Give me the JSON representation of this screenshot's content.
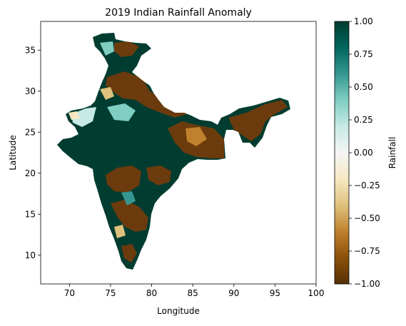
{
  "chart_data": {
    "type": "heatmap",
    "title": "2019 Indian Rainfall Anomaly",
    "xlabel": "Longitude",
    "ylabel": "Latitude",
    "xlim": [
      66.5,
      100
    ],
    "ylim": [
      6.5,
      38.5
    ],
    "x_ticks": [
      "70",
      "75",
      "80",
      "85",
      "90",
      "95",
      "100"
    ],
    "y_ticks": [
      "10",
      "15",
      "20",
      "25",
      "30",
      "35"
    ],
    "colorbar": {
      "label": "Rainfall",
      "range": [
        -1.0,
        1.0
      ],
      "ticks": [
        "1.00",
        "0.75",
        "0.50",
        "0.25",
        "0.00",
        "−0.25",
        "−0.50",
        "−0.75",
        "−1.00"
      ],
      "colormap": "BrBG",
      "stops": [
        "#543005",
        "#8c510a",
        "#bf812d",
        "#dfc27d",
        "#f6e8c3",
        "#f5f5f5",
        "#c7eae5",
        "#80cdc1",
        "#35978f",
        "#01665e",
        "#003c30"
      ]
    },
    "grid": false
  }
}
